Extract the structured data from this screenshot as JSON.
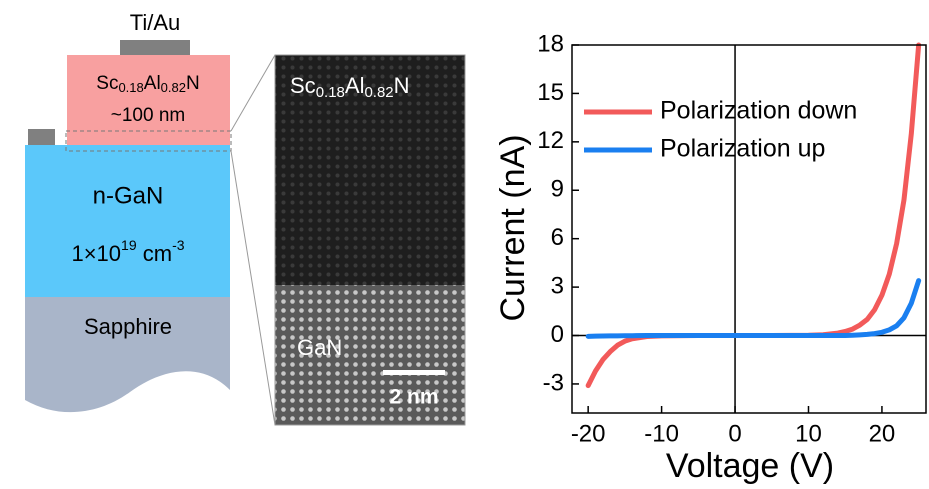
{
  "diagram": {
    "contact_label": "Ti/Au",
    "barrier": {
      "formula": [
        "Sc",
        "0.18",
        "Al",
        "0.82",
        "N"
      ],
      "thickness": "~100 nm"
    },
    "channel": {
      "name": "n-GaN",
      "doping": [
        "1×10",
        "19",
        " cm",
        "-3"
      ]
    },
    "substrate": "Sapphire"
  },
  "tem": {
    "top_label": [
      "Sc",
      "0.18",
      "Al",
      "0.82",
      "N"
    ],
    "bottom_label": "GaN",
    "scale_bar": "2 nm"
  },
  "chart_data": {
    "type": "line",
    "x_label": "Voltage (V)",
    "y_label": "Current (nA)",
    "x": [
      -20,
      -19,
      -18,
      -17,
      -16,
      -15,
      -14,
      -12,
      -10,
      -5,
      0,
      5,
      10,
      12,
      14,
      15,
      16,
      17,
      18,
      19,
      20,
      21,
      22,
      23,
      24,
      25
    ],
    "series": [
      {
        "name": "Polarization down",
        "color": "#f25a5a",
        "values": [
          -3.1,
          -2.2,
          -1.5,
          -1.0,
          -0.6,
          -0.35,
          -0.2,
          -0.06,
          -0.02,
          0,
          0,
          0,
          0.02,
          0.05,
          0.15,
          0.25,
          0.4,
          0.65,
          1.0,
          1.6,
          2.5,
          3.8,
          5.7,
          8.4,
          12.5,
          18
        ]
      },
      {
        "name": "Polarization up",
        "color": "#1a7ff0",
        "values": [
          -0.05,
          -0.04,
          -0.03,
          -0.02,
          -0.02,
          -0.01,
          -0.01,
          0,
          0,
          0,
          0,
          0,
          0,
          0,
          0,
          0,
          0.02,
          0.04,
          0.07,
          0.12,
          0.2,
          0.35,
          0.6,
          1.1,
          2.0,
          3.4
        ]
      }
    ],
    "xlim": [
      -22.2,
      26
    ],
    "ylim": [
      -4.8,
      18
    ],
    "xticks": [
      -20,
      -10,
      0,
      10,
      20
    ],
    "yticks": [
      -3,
      0,
      3,
      6,
      9,
      12,
      15,
      18
    ],
    "legend": "upper left",
    "zero_lines": true
  }
}
